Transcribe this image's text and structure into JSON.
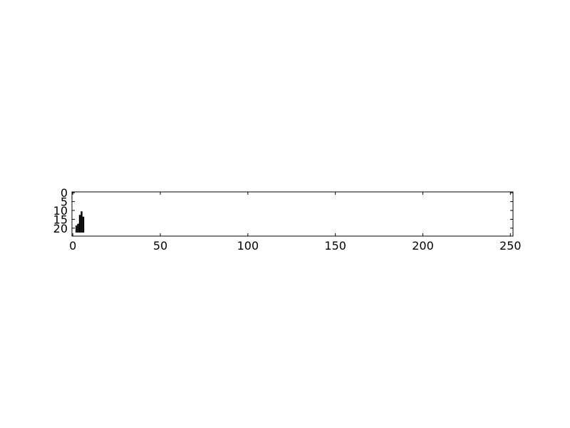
{
  "chart_data": {
    "type": "heatmap",
    "title": "",
    "xlabel": "",
    "ylabel": "",
    "xlim": [
      -0.5,
      251.5
    ],
    "ylim": [
      24.5,
      -0.5
    ],
    "x_ticks": [
      0,
      50,
      100,
      150,
      200,
      250
    ],
    "y_ticks": [
      0,
      5,
      10,
      15,
      20
    ],
    "x_tick_labels": [
      "0",
      "50",
      "100",
      "150",
      "200",
      "250"
    ],
    "y_tick_labels": [
      "0",
      "5",
      "10",
      "15",
      "20"
    ],
    "colormap": "gray_r",
    "background_value": 0,
    "filled_cells": [
      {
        "col": 2,
        "row_start": 19,
        "row_end": 22,
        "value": 0.9
      },
      {
        "col": 3,
        "row_start": 18,
        "row_end": 22,
        "value": 1
      },
      {
        "col": 4,
        "row_start": 13,
        "row_end": 22,
        "value": 1
      },
      {
        "col": 5,
        "row_start": 11,
        "row_end": 22,
        "value": 1
      },
      {
        "col": 6,
        "row_start": 14,
        "row_end": 22,
        "value": 1
      }
    ],
    "grid": false,
    "legend": "none"
  },
  "colors": {
    "ink": "#000000",
    "background": "#ffffff"
  }
}
